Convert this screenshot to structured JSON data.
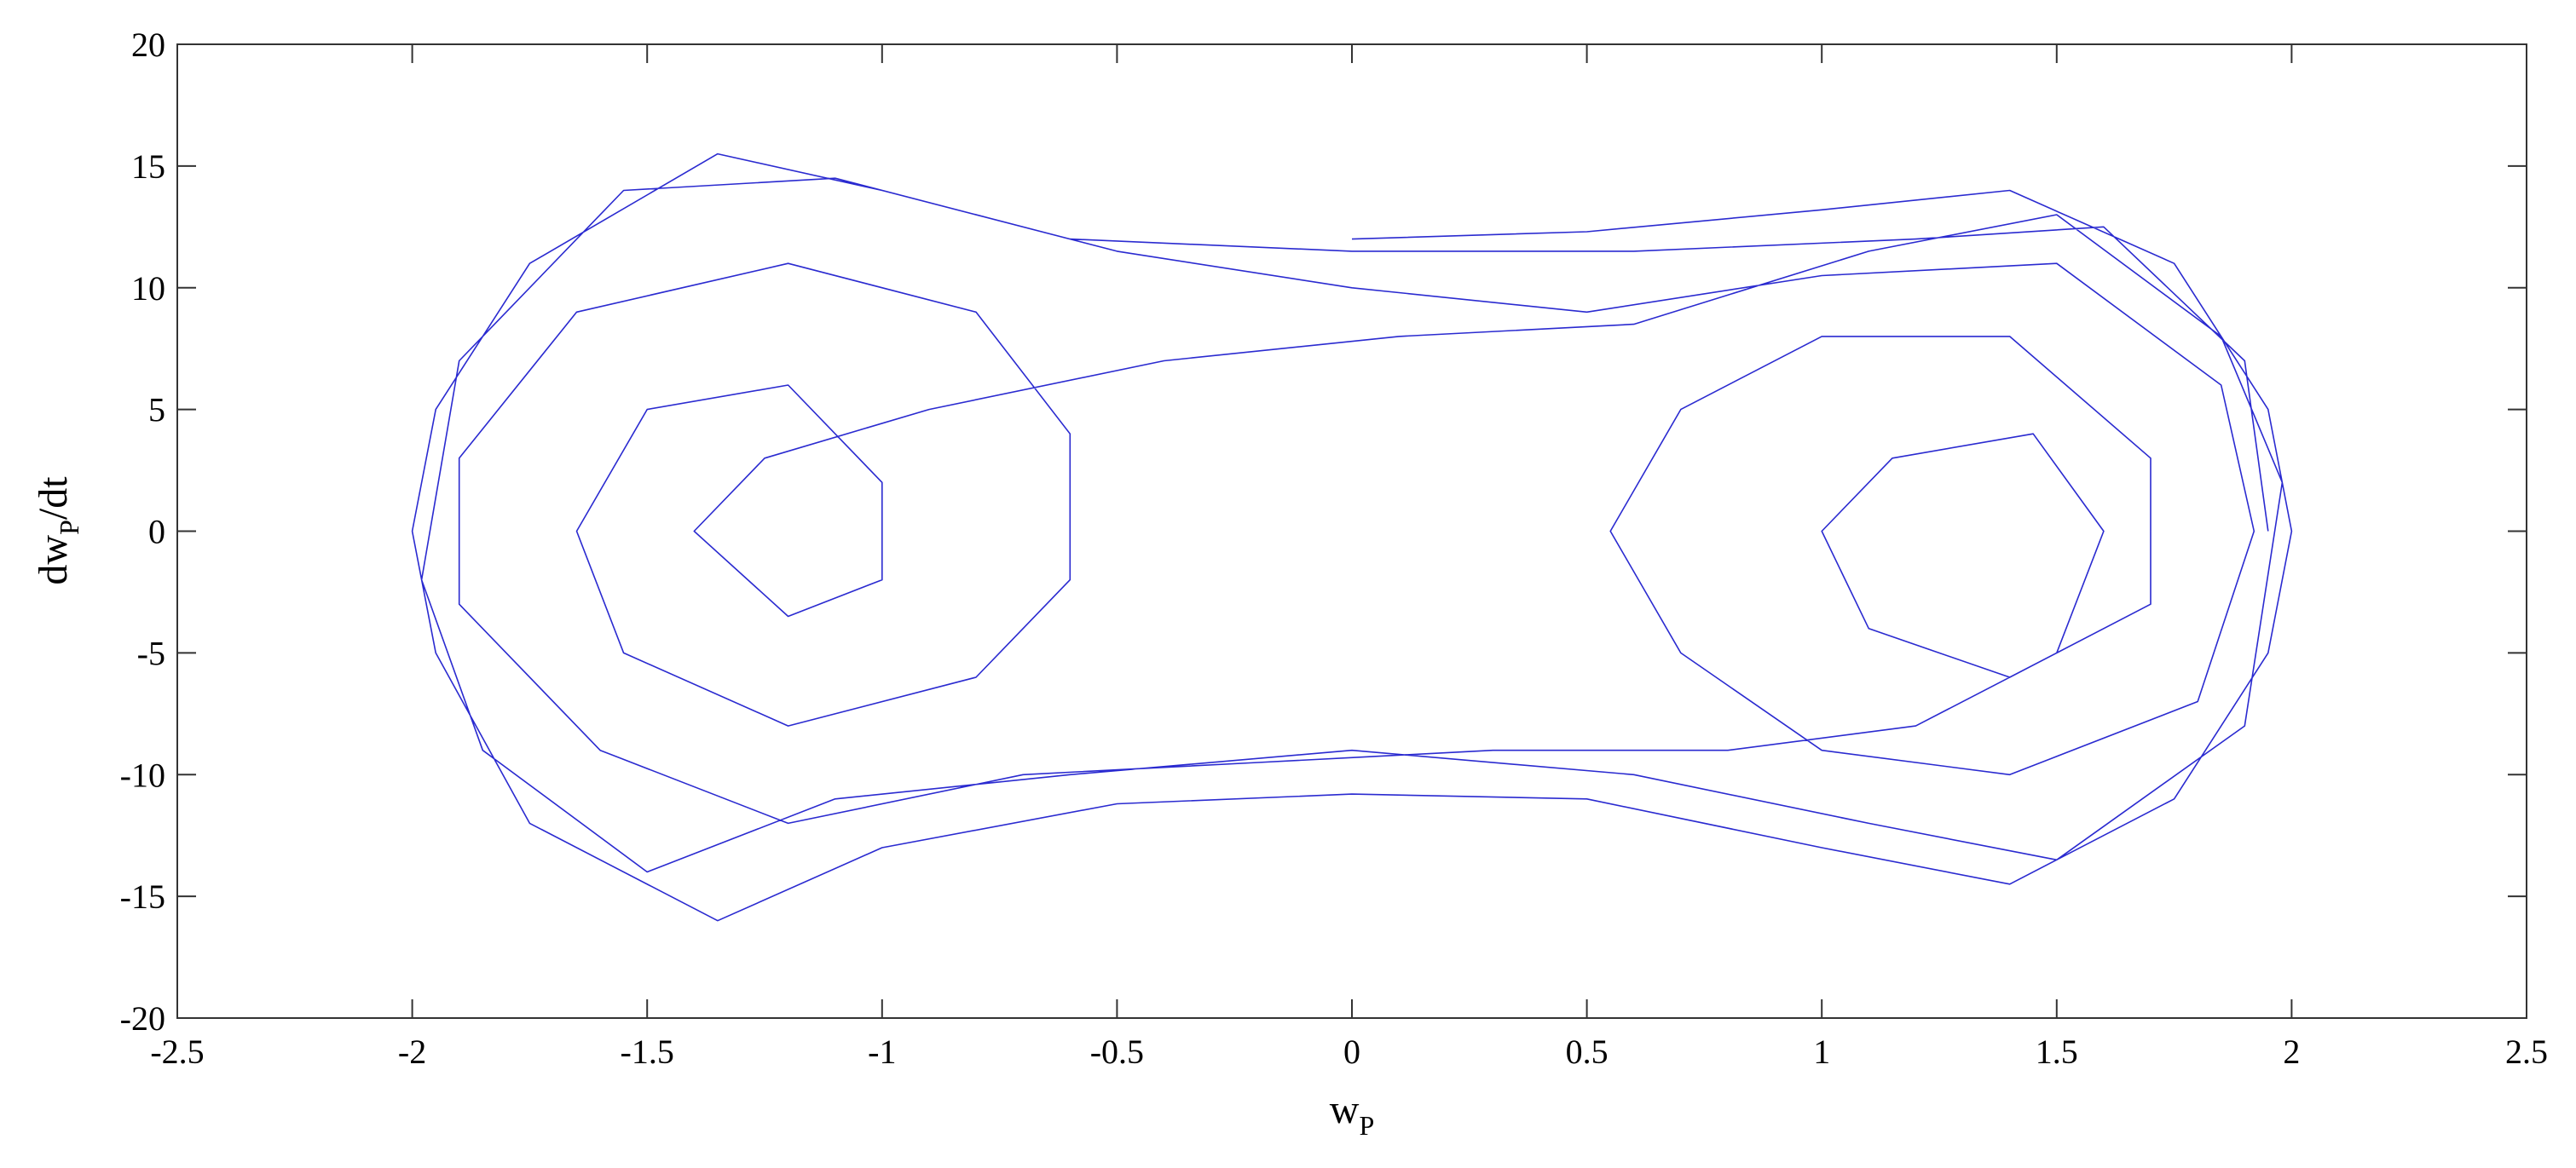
{
  "chart_data": {
    "type": "line",
    "xlabel": {
      "base": "w",
      "sub": "P"
    },
    "ylabel": {
      "base": "dw",
      "sub": "P",
      "rest": "/dt"
    },
    "color": "#2a2ad0",
    "xlim": [
      -2.5,
      2.5
    ],
    "ylim": [
      -20,
      20
    ],
    "xticks": [
      -2.5,
      -2,
      -1.5,
      -1,
      -0.5,
      0,
      0.5,
      1,
      1.5,
      2,
      2.5
    ],
    "yticks": [
      -20,
      -15,
      -10,
      -5,
      0,
      5,
      10,
      15,
      20
    ],
    "grid": false,
    "x": [
      0,
      0.5,
      1,
      1.4,
      1.75,
      1.95,
      2,
      1.95,
      1.75,
      1.4,
      1,
      0.5,
      0,
      -0.5,
      -1,
      -1.35,
      -1.75,
      -1.95,
      -2,
      -1.95,
      -1.75,
      -1.35,
      -1,
      -0.5,
      0,
      0.5,
      1,
      1.5,
      1.85,
      1.92,
      1.8,
      1.4,
      1,
      0.7,
      0.55,
      0.7,
      1,
      1.4,
      1.7,
      1.7,
      1.4,
      1.1,
      1,
      1.15,
      1.45,
      1.6,
      1.5,
      1.2,
      0.8,
      0.3,
      -0.2,
      -0.7,
      -1.2,
      -1.6,
      -1.9,
      -1.9,
      -1.65,
      -1.2,
      -0.8,
      -0.6,
      -0.6,
      -0.8,
      -1.2,
      -1.55,
      -1.65,
      -1.5,
      -1.2,
      -1,
      -1,
      -1.2,
      -1.4,
      -1.25,
      -0.9,
      -0.4,
      0.1,
      0.6,
      1.1,
      1.5,
      1.85,
      1.98,
      1.9,
      1.5,
      1.1,
      0.6,
      0,
      -0.6,
      -1.1,
      -1.5,
      -1.85,
      -1.98,
      -1.9,
      -1.55,
      -1.1,
      -0.6,
      0,
      0.6,
      1.2,
      1.6,
      1.9,
      1.95
    ],
    "y": [
      12,
      12.3,
      13.2,
      14,
      11,
      5,
      0,
      -5,
      -11,
      -14.5,
      -13,
      -11,
      -10.8,
      -11.2,
      -13,
      -16,
      -12,
      -5,
      0,
      5,
      11,
      15.5,
      14,
      11.5,
      10,
      9,
      10.5,
      11,
      6,
      0,
      -7,
      -10,
      -9,
      -5,
      0,
      5,
      8,
      8,
      3,
      -3,
      -6,
      -4,
      0,
      3,
      4,
      0,
      -5,
      -8,
      -9,
      -9,
      -9.5,
      -10,
      -12,
      -9,
      -3,
      3,
      9,
      11,
      9,
      4,
      -2,
      -6,
      -8,
      -5,
      0,
      5,
      6,
      2,
      -2,
      -3.5,
      0,
      3,
      5,
      7,
      8,
      8.5,
      11.5,
      13,
      8,
      2,
      -8,
      -13.5,
      -12,
      -10,
      -9,
      -10,
      -11,
      -14,
      -9,
      -2,
      7,
      14,
      14.5,
      12,
      11.5,
      11.5,
      12,
      12.5,
      7,
      0
    ]
  }
}
